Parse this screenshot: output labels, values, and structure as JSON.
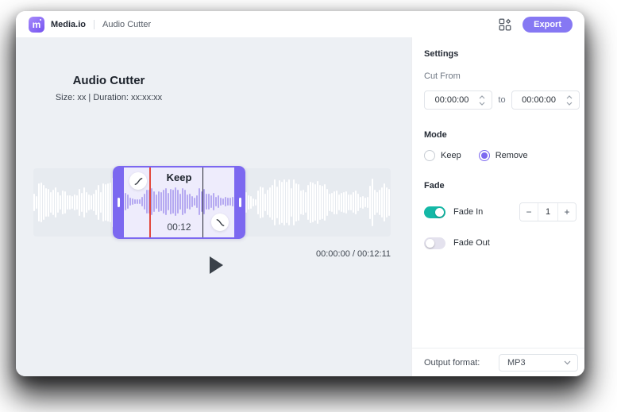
{
  "colors": {
    "accent": "#8678F3",
    "accent_deep": "#7C68F0",
    "toggle_on": "#14B8A6",
    "playhead_red": "#E2483D",
    "marker_dark": "#23252F"
  },
  "header": {
    "logo_letter": "m",
    "brand": "Media.io",
    "app_name": "Audio Cutter",
    "export_label": "Export"
  },
  "icons": {
    "header_grid": "apps-grid-icon",
    "fade_in_curve": "fade-in-curve-icon",
    "fade_out_curve": "fade-out-curve-icon",
    "play": "play-icon",
    "spinner": "chevron-up-down-icon",
    "select_arrow": "chevron-down-icon"
  },
  "editor": {
    "title": "Audio Cutter",
    "meta": "Size: xx | Duration: xx:xx:xx",
    "selection_label": "Keep",
    "selection_duration": "00:12",
    "time_display": "00:00:00 / 00:12:11"
  },
  "settings": {
    "title": "Settings",
    "cut_from_label": "Cut From",
    "from_value": "00:00:00",
    "to_separator": "to",
    "to_value": "00:00:00",
    "mode_label": "Mode",
    "mode_options": [
      {
        "label": "Keep",
        "selected": false
      },
      {
        "label": "Remove",
        "selected": true
      }
    ],
    "fade_label": "Fade",
    "fade_in_label": "Fade In",
    "fade_in_enabled": true,
    "fade_in_value": "1",
    "stepper_minus": "−",
    "stepper_plus": "+",
    "fade_out_label": "Fade Out",
    "fade_out_enabled": false
  },
  "footer": {
    "output_format_label": "Output format:",
    "selected_format": "MP3"
  }
}
